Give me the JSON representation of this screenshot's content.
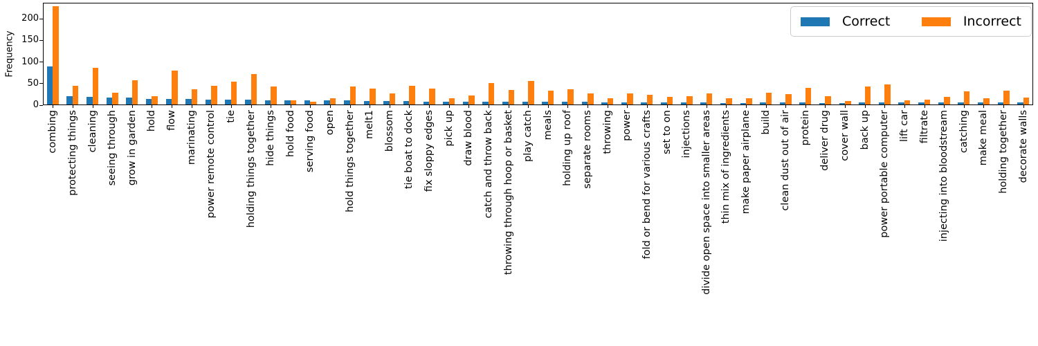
{
  "chart_data": {
    "type": "bar",
    "title": "",
    "xlabel": "",
    "ylabel": "Frequency",
    "yticks": [
      0,
      50,
      100,
      150,
      200
    ],
    "ylim": [
      0,
      237
    ],
    "grid": false,
    "legend_position": "upper-right",
    "categories": [
      "combing",
      "protecting things",
      "cleaning",
      "seeing through",
      "grow in garden",
      "hold",
      "flow",
      "marinating",
      "power remote control",
      "tie",
      "holding things together",
      "hide things",
      "hold food",
      "serving food",
      "open",
      "hold things together",
      "melt1",
      "blossom",
      "tie boat to dock",
      "fix sloppy edges",
      "pick up",
      "draw blood",
      "catch and throw back",
      "throwing through hoop or basket",
      "play catch",
      "meals",
      "holding up roof",
      "separate rooms",
      "throwing",
      "power",
      "fold or bend for various crafts",
      "set to on",
      "injections",
      "divide open space into smaller areas",
      "thin mix of ingredients",
      "make paper airplane",
      "build",
      "clean dust out of air",
      "protein",
      "deliver drug",
      "cover wall",
      "back up",
      "power portable computer",
      "lift car",
      "filtrate",
      "injecting into bloodstream",
      "catching",
      "make meal",
      "holding together",
      "decorate walls"
    ],
    "series": [
      {
        "name": "Correct",
        "color": "#1f77b4",
        "values": [
          88,
          19,
          18,
          16,
          16,
          13,
          13,
          13,
          11,
          11,
          11,
          10,
          10,
          10,
          9,
          9,
          8,
          8,
          8,
          7,
          7,
          7,
          7,
          7,
          7,
          7,
          7,
          6,
          5,
          5,
          5,
          5,
          5,
          5,
          4,
          4,
          5,
          5,
          5,
          4,
          4,
          5,
          5,
          5,
          5,
          5,
          5,
          5,
          5,
          5
        ]
      },
      {
        "name": "Incorrect",
        "color": "#ff7f0e",
        "values": [
          228,
          44,
          85,
          27,
          56,
          20,
          78,
          35,
          43,
          53,
          70,
          41,
          10,
          7,
          15,
          41,
          37,
          26,
          43,
          37,
          15,
          21,
          50,
          33,
          54,
          32,
          35,
          25,
          15,
          26,
          22,
          17,
          19,
          26,
          15,
          14,
          27,
          24,
          39,
          19,
          8,
          42,
          46,
          9,
          12,
          18,
          30,
          15,
          32,
          16
        ]
      }
    ]
  }
}
